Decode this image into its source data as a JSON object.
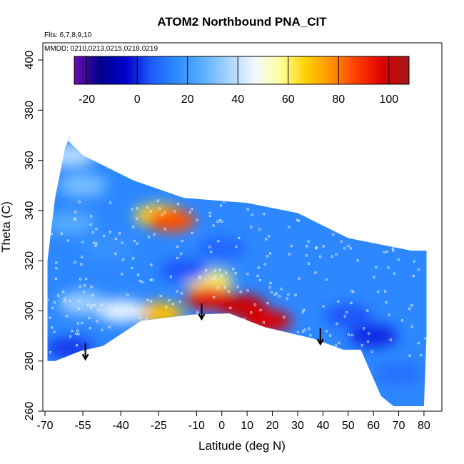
{
  "chart_data": {
    "type": "heatmap",
    "title": "ATOM2 Northbound PNA_CIT",
    "subtitle_lines": [
      "Flts: 6,7,8,9,10",
      "MMDD: 0210,0213,0215,0218,0219"
    ],
    "xlabel": "Latitude (deg N)",
    "ylabel": "Theta (C)",
    "xlim": [
      -70,
      82
    ],
    "ylim": [
      260,
      404
    ],
    "x_ticks": [
      -70,
      -55,
      -40,
      -25,
      -10,
      0,
      10,
      20,
      30,
      40,
      50,
      60,
      70,
      80
    ],
    "y_ticks": [
      260,
      280,
      300,
      320,
      340,
      360,
      380,
      400
    ],
    "colorbar": {
      "range": [
        -25,
        108
      ],
      "ticks": [
        -20,
        0,
        20,
        40,
        60,
        80,
        100
      ],
      "colors": [
        "#6a0dad",
        "#00008b",
        "#0000cd",
        "#1e5bff",
        "#2f8cff",
        "#5ab0ff",
        "#a7d4ff",
        "#f2f8ff",
        "#ffff9e",
        "#ffd000",
        "#ff9000",
        "#ff3a00",
        "#dd0000",
        "#9e1b1b"
      ]
    },
    "field": {
      "outline": [
        [
          -69,
          280
        ],
        [
          -66,
          280
        ],
        [
          -56,
          284
        ],
        [
          -47,
          286
        ],
        [
          -32,
          296
        ],
        [
          -12,
          298.5
        ],
        [
          3,
          299
        ],
        [
          17,
          293.5
        ],
        [
          36,
          289
        ],
        [
          48,
          284.5
        ],
        [
          55,
          284.5
        ],
        [
          63,
          266
        ],
        [
          68,
          262
        ],
        [
          72,
          262
        ],
        [
          80,
          262
        ],
        [
          81,
          290
        ],
        [
          81,
          324
        ],
        [
          75,
          324
        ],
        [
          50,
          329
        ],
        [
          30,
          339
        ],
        [
          10,
          343
        ],
        [
          -15,
          345
        ],
        [
          -35,
          352
        ],
        [
          -55,
          362
        ],
        [
          -61,
          368
        ],
        [
          -60,
          370
        ],
        [
          -62,
          365
        ],
        [
          -66,
          345
        ],
        [
          -69,
          320
        ],
        [
          -69,
          280
        ]
      ],
      "background_value": 15,
      "features": [
        {
          "lon": -60,
          "theta": 362,
          "value": 38
        },
        {
          "lon": -55,
          "theta": 350,
          "value": 30
        },
        {
          "lon": -60,
          "theta": 335,
          "value": 25
        },
        {
          "lon": -25,
          "theta": 338,
          "value": 65
        },
        {
          "lon": -20,
          "theta": 336,
          "value": 85
        },
        {
          "lon": -5,
          "theta": 312,
          "value": 60
        },
        {
          "lon": -5,
          "theta": 305,
          "value": 95
        },
        {
          "lon": 8,
          "theta": 302,
          "value": 100
        },
        {
          "lon": 18,
          "theta": 296,
          "value": 98
        },
        {
          "lon": -25,
          "theta": 299,
          "value": 70
        },
        {
          "lon": -40,
          "theta": 300,
          "value": 45
        },
        {
          "lon": -55,
          "theta": 303,
          "value": 35
        },
        {
          "lon": -60,
          "theta": 285,
          "value": 2
        },
        {
          "lon": 60,
          "theta": 290,
          "value": 0
        },
        {
          "lon": 50,
          "theta": 298,
          "value": 5
        },
        {
          "lon": -15,
          "theta": 316,
          "value": 5
        },
        {
          "lon": 0,
          "theta": 325,
          "value": 8
        },
        {
          "lon": 70,
          "theta": 275,
          "value": 10
        },
        {
          "lon": -45,
          "theta": 325,
          "value": 18
        }
      ]
    },
    "arrows": [
      {
        "lon": -54,
        "theta": 287
      },
      {
        "lon": -8,
        "theta": 303
      },
      {
        "lon": 39,
        "theta": 293
      }
    ]
  }
}
